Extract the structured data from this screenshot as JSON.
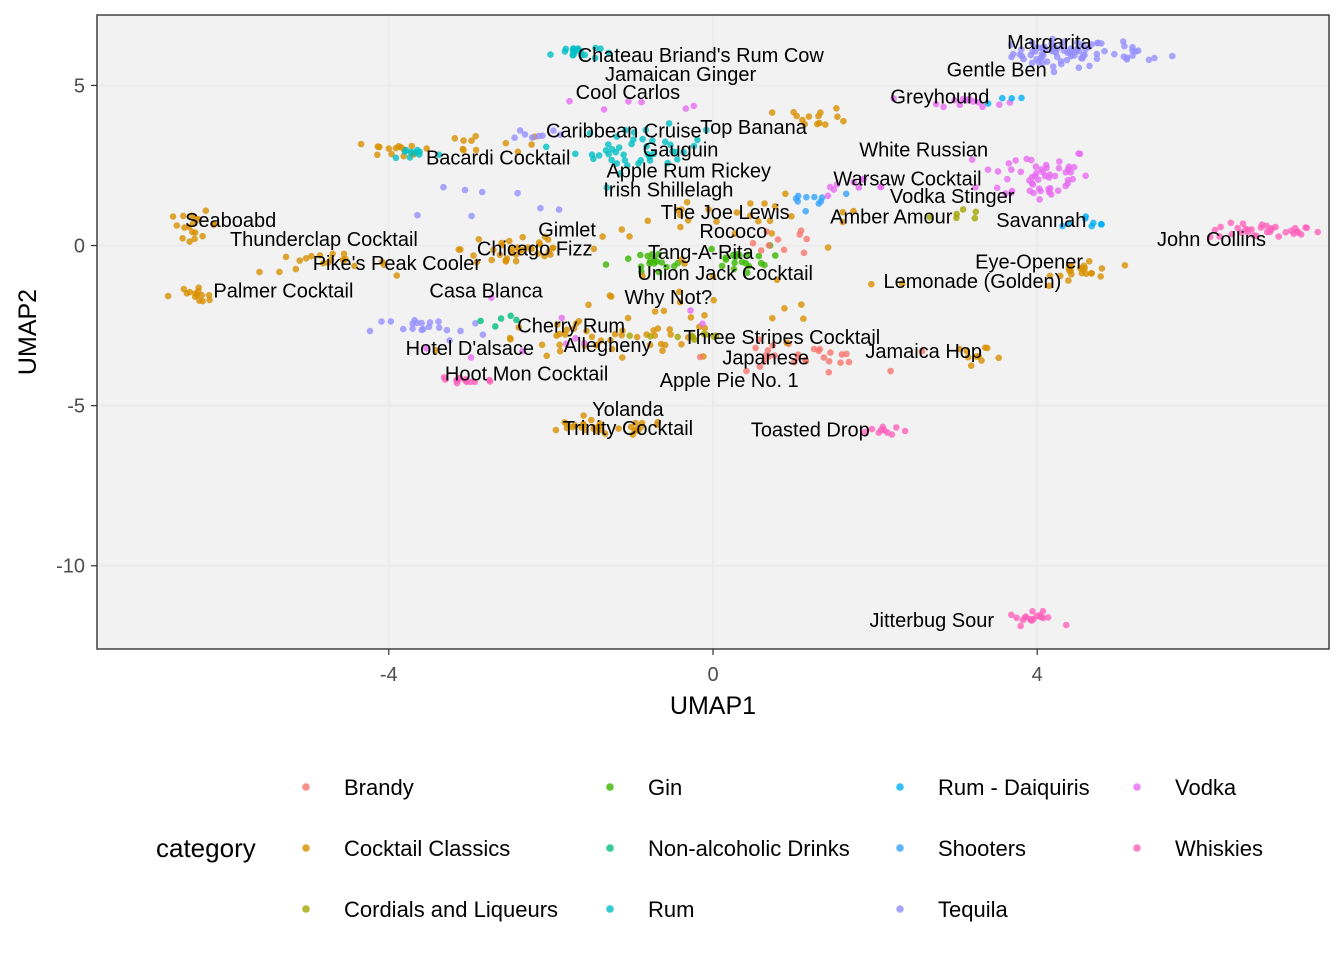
{
  "chart_data": {
    "type": "scatter",
    "xlabel": "UMAP1",
    "ylabel": "UMAP2",
    "xlim": [
      -7.6,
      7.6
    ],
    "ylim": [
      -12.6,
      7.2
    ],
    "xticks": [
      -4,
      0,
      4
    ],
    "xtick_labels": [
      "-4",
      "0",
      "4"
    ],
    "yticks": [
      5,
      0,
      -5,
      -10
    ],
    "ytick_labels": [
      "5",
      "0",
      "-5",
      "-10"
    ],
    "grid": true,
    "legend": {
      "title": "category",
      "position": "bottom",
      "entries": [
        {
          "name": "Brandy",
          "color": "#F8766D"
        },
        {
          "name": "Cocktail Classics",
          "color": "#D89000"
        },
        {
          "name": "Cordials and Liqueurs",
          "color": "#A3A500"
        },
        {
          "name": "Gin",
          "color": "#39B600"
        },
        {
          "name": "Non-alcoholic Drinks",
          "color": "#00BF7D"
        },
        {
          "name": "Rum",
          "color": "#00BFC4"
        },
        {
          "name": "Rum - Daiquiris",
          "color": "#00B0F6"
        },
        {
          "name": "Shooters",
          "color": "#35A2FF"
        },
        {
          "name": "Tequila",
          "color": "#9590FF"
        },
        {
          "name": "Vodka",
          "color": "#E76BF3"
        },
        {
          "name": "Whiskies",
          "color": "#FF62BC"
        }
      ]
    },
    "labels": [
      {
        "text": "Margarita",
        "x": 4.15,
        "y": 6.35
      },
      {
        "text": "Chateau Briand's Rum Cow",
        "x": -0.15,
        "y": 5.95
      },
      {
        "text": "Gentle Ben",
        "x": 3.5,
        "y": 5.5
      },
      {
        "text": "Jamaican Ginger",
        "x": -0.4,
        "y": 5.35
      },
      {
        "text": "Cool Carlos",
        "x": -1.05,
        "y": 4.8
      },
      {
        "text": "Greyhound",
        "x": 2.8,
        "y": 4.65
      },
      {
        "text": "Top Banana",
        "x": 0.5,
        "y": 3.7
      },
      {
        "text": "Caribbean Cruise",
        "x": -1.1,
        "y": 3.6
      },
      {
        "text": "Gauguin",
        "x": -0.4,
        "y": 3.0
      },
      {
        "text": "White Russian",
        "x": 2.6,
        "y": 3.0
      },
      {
        "text": "Bacardi Cocktail",
        "x": -2.65,
        "y": 2.75
      },
      {
        "text": "Apple Rum Rickey",
        "x": -0.3,
        "y": 2.35
      },
      {
        "text": "Warsaw Cocktail",
        "x": 2.4,
        "y": 2.1
      },
      {
        "text": "Irish Shillelagh",
        "x": -0.55,
        "y": 1.75
      },
      {
        "text": "Vodka Stinger",
        "x": 2.95,
        "y": 1.55
      },
      {
        "text": "The Joe Lewis",
        "x": 0.15,
        "y": 1.05
      },
      {
        "text": "Amber Amour",
        "x": 2.2,
        "y": 0.9
      },
      {
        "text": "Seaboabd",
        "x": -5.95,
        "y": 0.8
      },
      {
        "text": "Savannah",
        "x": 4.05,
        "y": 0.8
      },
      {
        "text": "Gimlet",
        "x": -1.8,
        "y": 0.5
      },
      {
        "text": "Rococo",
        "x": 0.25,
        "y": 0.45
      },
      {
        "text": "Thunderclap Cocktail",
        "x": -4.8,
        "y": 0.2
      },
      {
        "text": "John Collins",
        "x": 6.15,
        "y": 0.2
      },
      {
        "text": "Chicago Fizz",
        "x": -2.2,
        "y": -0.1
      },
      {
        "text": "Tang-A-Rita",
        "x": -0.15,
        "y": -0.2
      },
      {
        "text": "Pike's Peak Cooler",
        "x": -3.9,
        "y": -0.55
      },
      {
        "text": "Eye-Opener",
        "x": 3.9,
        "y": -0.5
      },
      {
        "text": "Union Jack Cocktail",
        "x": 0.15,
        "y": -0.85
      },
      {
        "text": "Lemonade (Golden)",
        "x": 3.2,
        "y": -1.1
      },
      {
        "text": "Palmer Cocktail",
        "x": -5.3,
        "y": -1.4
      },
      {
        "text": "Casa Blanca",
        "x": -2.8,
        "y": -1.4
      },
      {
        "text": "Why Not?",
        "x": -0.55,
        "y": -1.6
      },
      {
        "text": "Cherry Rum",
        "x": -1.75,
        "y": -2.5
      },
      {
        "text": "Three Stripes Cocktail",
        "x": 0.85,
        "y": -2.85
      },
      {
        "text": "Allegheny",
        "x": -1.3,
        "y": -3.1
      },
      {
        "text": "Hotel D'alsace",
        "x": -3.0,
        "y": -3.2
      },
      {
        "text": "Jamaica Hop",
        "x": 2.6,
        "y": -3.3
      },
      {
        "text": "Japanese",
        "x": 0.65,
        "y": -3.5
      },
      {
        "text": "Hoot Mon Cocktail",
        "x": -2.3,
        "y": -4.0
      },
      {
        "text": "Apple Pie No. 1",
        "x": 0.2,
        "y": -4.2
      },
      {
        "text": "Yolanda",
        "x": -1.05,
        "y": -5.1
      },
      {
        "text": "Trinity Cocktail",
        "x": -1.05,
        "y": -5.7
      },
      {
        "text": "Toasted Drop",
        "x": 1.2,
        "y": -5.75
      },
      {
        "text": "Jitterbug Sour",
        "x": 2.7,
        "y": -11.7
      }
    ],
    "clusters": [
      {
        "category": "Tequila",
        "x": 4.3,
        "y": 6.0,
        "sx": 0.3,
        "sy": 0.22,
        "n": 70
      },
      {
        "category": "Tequila",
        "x": 5.2,
        "y": 6.0,
        "sx": 0.22,
        "sy": 0.15,
        "n": 14
      },
      {
        "category": "Whiskies",
        "x": 6.8,
        "y": 0.45,
        "sx": 0.35,
        "sy": 0.12,
        "n": 34
      },
      {
        "category": "Vodka",
        "x": 4.0,
        "y": 2.2,
        "sx": 0.35,
        "sy": 0.45,
        "n": 55
      },
      {
        "category": "Vodka",
        "x": 3.1,
        "y": 4.5,
        "sx": 0.25,
        "sy": 0.08,
        "n": 14
      },
      {
        "category": "Whiskies",
        "x": 3.95,
        "y": -11.65,
        "sx": 0.15,
        "sy": 0.1,
        "n": 18
      },
      {
        "category": "Whiskies",
        "x": 2.1,
        "y": -5.75,
        "sx": 0.15,
        "sy": 0.1,
        "n": 10
      },
      {
        "category": "Rum",
        "x": -1.7,
        "y": 6.05,
        "sx": 0.15,
        "sy": 0.12,
        "n": 18
      },
      {
        "category": "Rum",
        "x": -0.9,
        "y": 3.0,
        "sx": 0.4,
        "sy": 0.35,
        "n": 45
      },
      {
        "category": "Cocktail Classics",
        "x": -6.4,
        "y": 0.65,
        "sx": 0.15,
        "sy": 0.2,
        "n": 18
      },
      {
        "category": "Cocktail Classics",
        "x": -6.4,
        "y": -1.55,
        "sx": 0.2,
        "sy": 0.1,
        "n": 14
      },
      {
        "category": "Cocktail Classics",
        "x": -4.8,
        "y": -0.55,
        "sx": 0.4,
        "sy": 0.15,
        "n": 20
      },
      {
        "category": "Cocktail Classics",
        "x": -2.4,
        "y": -0.1,
        "sx": 0.35,
        "sy": 0.35,
        "n": 35
      },
      {
        "category": "Cocktail Classics",
        "x": -1.4,
        "y": -5.7,
        "sx": 0.45,
        "sy": 0.12,
        "n": 30
      },
      {
        "category": "Cocktail Classics",
        "x": -1.3,
        "y": -3.0,
        "sx": 0.8,
        "sy": 0.3,
        "n": 45
      },
      {
        "category": "Cocktail Classics",
        "x": 4.6,
        "y": -0.75,
        "sx": 0.2,
        "sy": 0.2,
        "n": 22
      },
      {
        "category": "Cocktail Classics",
        "x": 1.3,
        "y": 4.0,
        "sx": 0.2,
        "sy": 0.15,
        "n": 14
      },
      {
        "category": "Cocktail Classics",
        "x": -3.0,
        "y": 3.2,
        "sx": 0.6,
        "sy": 0.15,
        "n": 14
      },
      {
        "category": "Cocktail Classics",
        "x": 0.3,
        "y": 0.9,
        "sx": 1.0,
        "sy": 0.3,
        "n": 25
      },
      {
        "category": "Cocktail Classics",
        "x": 3.3,
        "y": -3.35,
        "sx": 0.2,
        "sy": 0.1,
        "n": 10
      },
      {
        "category": "Brandy",
        "x": 1.0,
        "y": -3.5,
        "sx": 0.5,
        "sy": 0.25,
        "n": 30
      },
      {
        "category": "Gin",
        "x": 0.3,
        "y": -0.4,
        "sx": 0.2,
        "sy": 0.2,
        "n": 20
      },
      {
        "category": "Gin",
        "x": -0.8,
        "y": -0.6,
        "sx": 0.25,
        "sy": 0.2,
        "n": 18
      },
      {
        "category": "Tequila",
        "x": -3.5,
        "y": -2.6,
        "sx": 0.35,
        "sy": 0.2,
        "n": 20
      },
      {
        "category": "Whiskies",
        "x": -3.1,
        "y": -4.2,
        "sx": 0.2,
        "sy": 0.1,
        "n": 14
      },
      {
        "category": "Cocktail Classics",
        "x": -3.8,
        "y": 2.95,
        "sx": 0.2,
        "sy": 0.12,
        "n": 12
      },
      {
        "category": "Rum",
        "x": -3.7,
        "y": 2.9,
        "sx": 0.15,
        "sy": 0.1,
        "n": 10
      },
      {
        "category": "Tequila",
        "x": -2.2,
        "y": 3.5,
        "sx": 0.2,
        "sy": 0.1,
        "n": 8
      },
      {
        "category": "Shooters",
        "x": 1.2,
        "y": 1.5,
        "sx": 0.3,
        "sy": 0.15,
        "n": 10
      },
      {
        "category": "Vodka",
        "x": 1.9,
        "y": 1.8,
        "sx": 0.4,
        "sy": 0.15,
        "n": 10
      },
      {
        "category": "Cordials and Liqueurs",
        "x": -0.3,
        "y": -2.85,
        "sx": 0.25,
        "sy": 0.15,
        "n": 10
      },
      {
        "category": "Cordials and Liqueurs",
        "x": 3.0,
        "y": 0.95,
        "sx": 0.15,
        "sy": 0.1,
        "n": 6
      },
      {
        "category": "Brandy",
        "x": 0.8,
        "y": 0.2,
        "sx": 0.3,
        "sy": 0.3,
        "n": 10
      },
      {
        "category": "Vodka",
        "x": -1.8,
        "y": -2.5,
        "sx": 0.7,
        "sy": 0.6,
        "n": 10
      },
      {
        "category": "Vodka",
        "x": -0.2,
        "y": 4.4,
        "sx": 0.6,
        "sy": 0.1,
        "n": 6
      },
      {
        "category": "Rum - Daiquiris",
        "x": 4.6,
        "y": 0.8,
        "sx": 0.2,
        "sy": 0.1,
        "n": 8
      },
      {
        "category": "Tequila",
        "x": -3.0,
        "y": 1.3,
        "sx": 0.6,
        "sy": 0.4,
        "n": 8
      },
      {
        "category": "Non-alcoholic Drinks",
        "x": -2.8,
        "y": -2.3,
        "sx": 0.3,
        "sy": 0.2,
        "n": 5
      },
      {
        "category": "Rum - Daiquiris",
        "x": 3.6,
        "y": 4.5,
        "sx": 0.2,
        "sy": 0.1,
        "n": 4
      },
      {
        "category": "Cocktail Classics",
        "x": -0.5,
        "y": -1.5,
        "sx": 1.2,
        "sy": 0.8,
        "n": 25
      }
    ]
  }
}
